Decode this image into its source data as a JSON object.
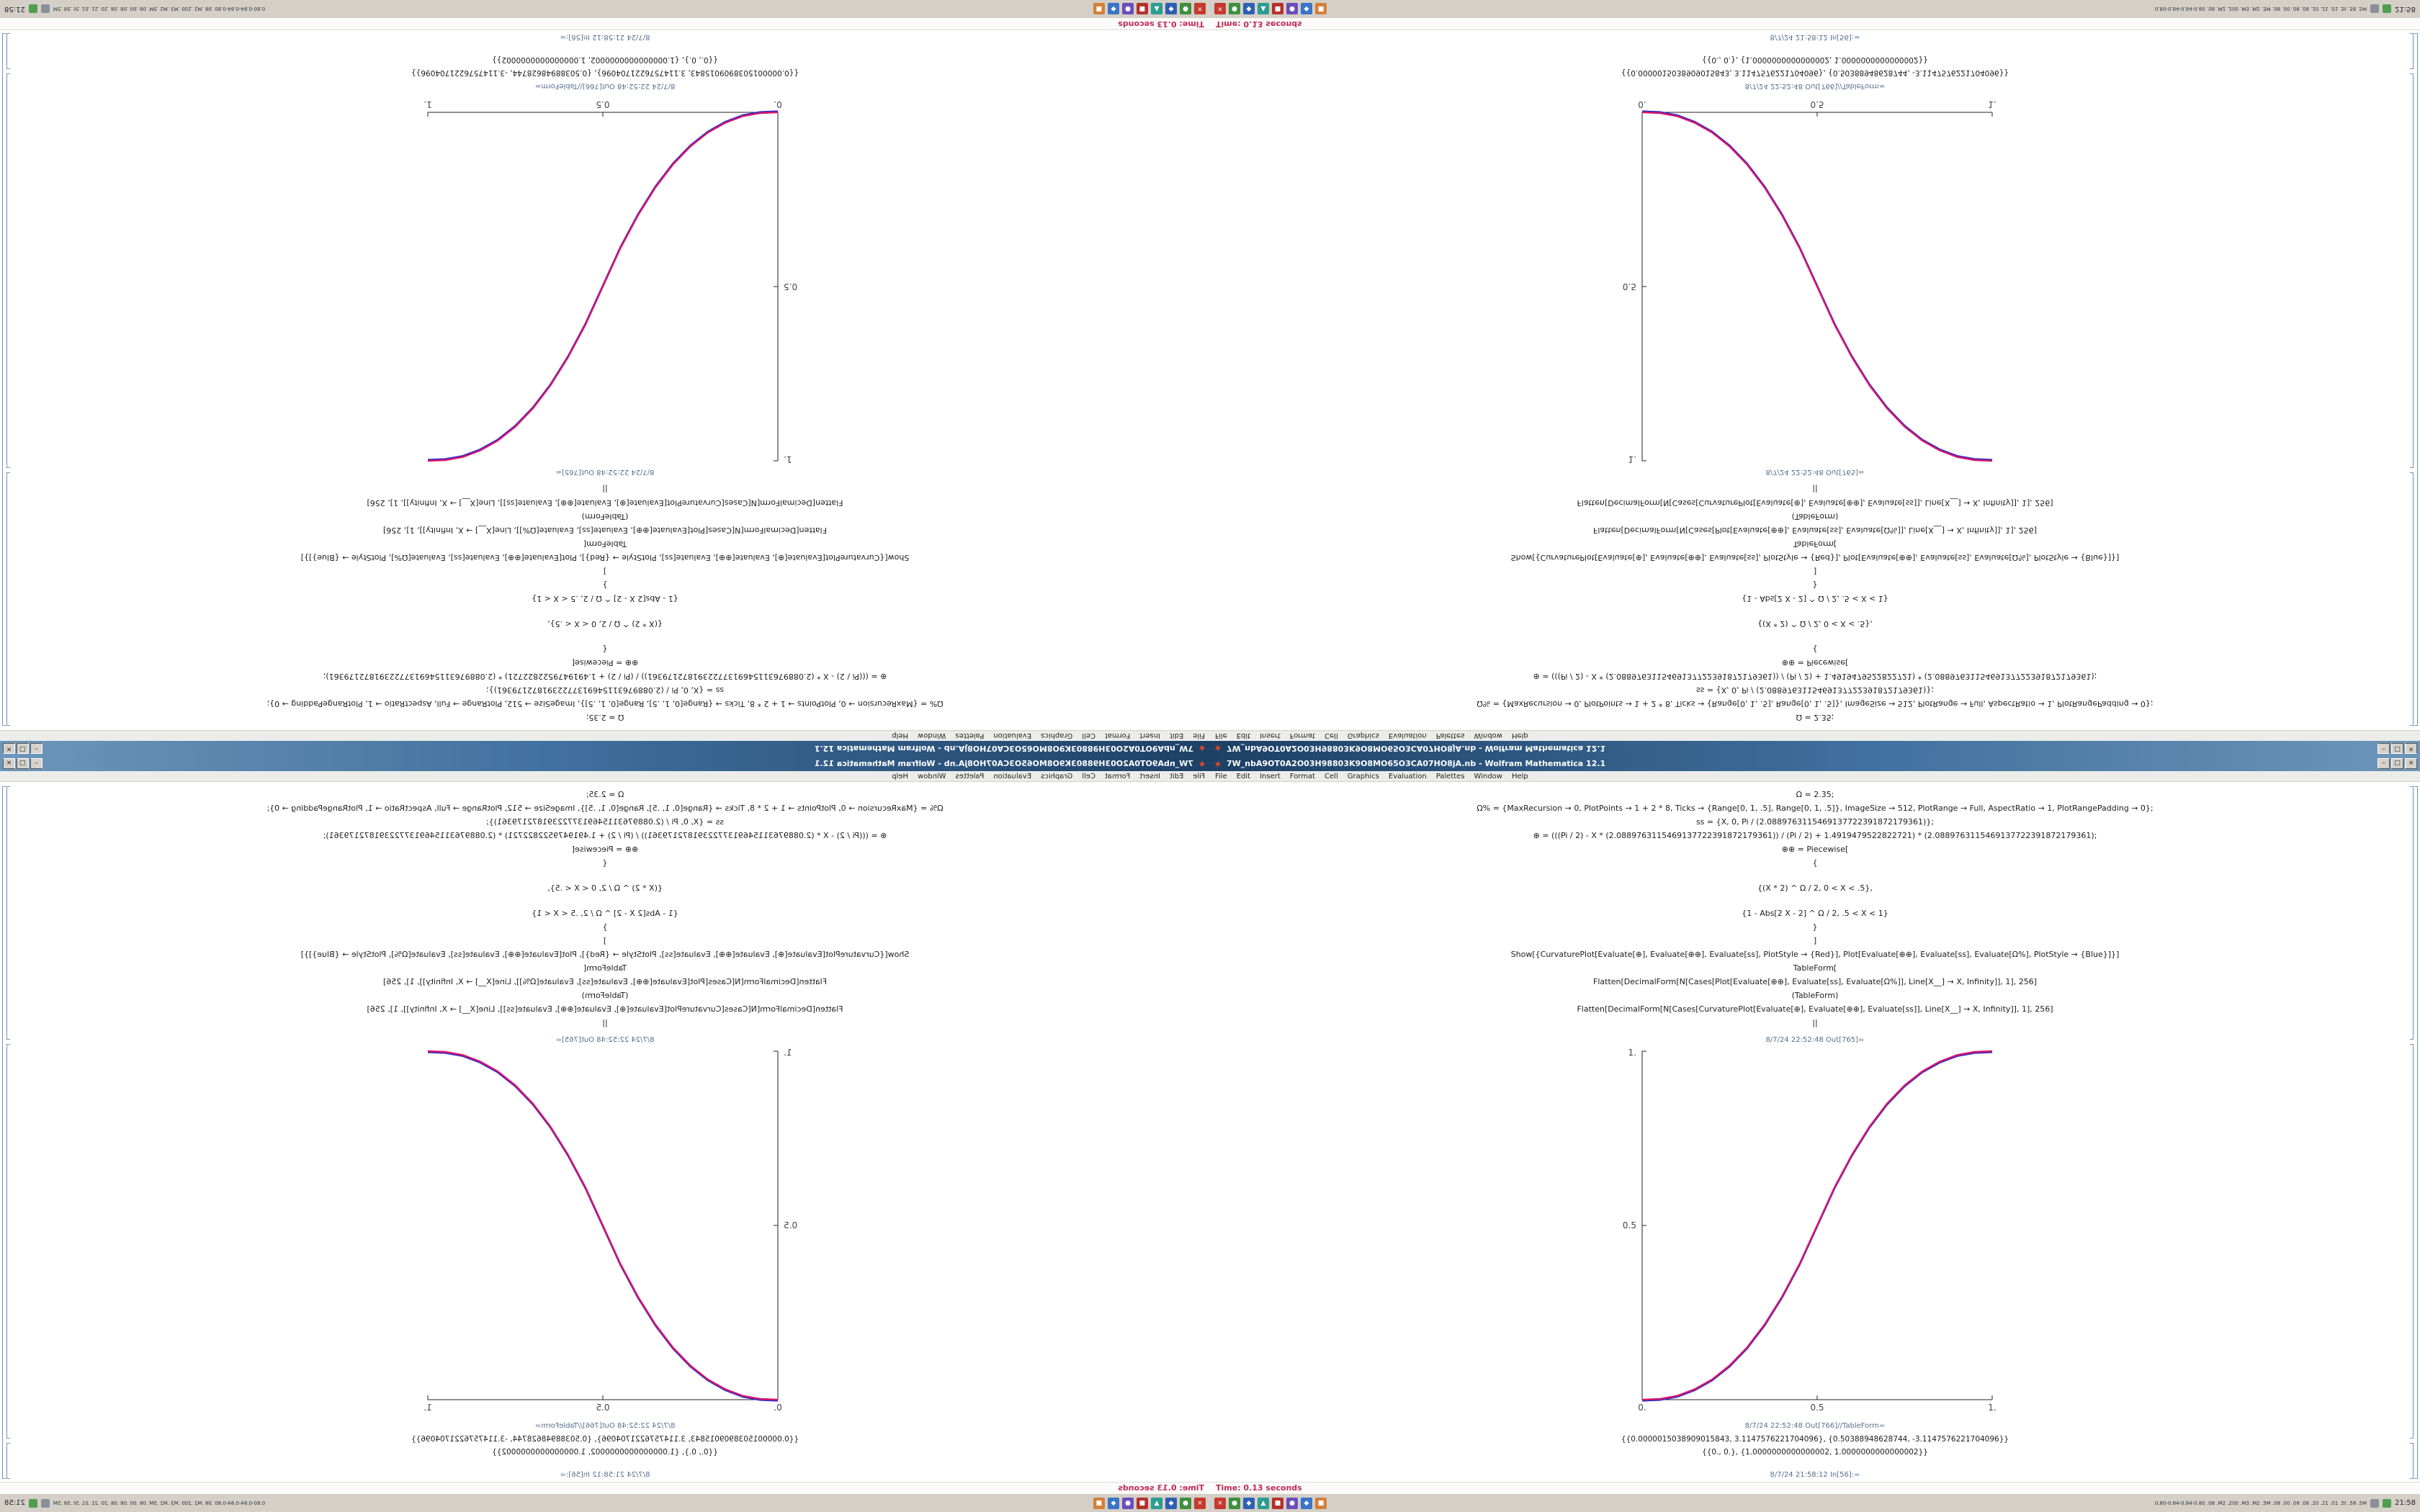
{
  "desktop": {
    "taskbar": {
      "quick_launch_icons": [
        {
          "name": "taskbar-app-red",
          "color": "#c43b2e",
          "glyph": "×"
        },
        {
          "name": "taskbar-app-green",
          "color": "#3e8f3e",
          "glyph": "●"
        },
        {
          "name": "taskbar-app-blue",
          "color": "#2f5fb5",
          "glyph": "◆"
        },
        {
          "name": "taskbar-app-teal",
          "color": "#2a9d8f",
          "glyph": "▲"
        },
        {
          "name": "taskbar-app-red-2",
          "color": "#b5312a",
          "glyph": "■"
        },
        {
          "name": "taskbar-app-purple",
          "color": "#6a4fb8",
          "glyph": "●"
        },
        {
          "name": "taskbar-app-blue-2",
          "color": "#3b74c9",
          "glyph": "◆"
        },
        {
          "name": "taskbar-app-orange",
          "color": "#d4803a",
          "glyph": "■"
        }
      ],
      "tray_text": "0.80-0.84-0.84-0.80 .08 .M2 .200 .M3 .M2 .5M .08 .00 .08 .08 .20 .21 .01 .5t .58 .5M",
      "clock": "21:58"
    },
    "status_strip": {
      "time_label": "Time: 0.13 seconds"
    }
  },
  "window": {
    "title": "7W_nbA9OT0A2O03H98803K9O8MO65O3CA07HO8jA.nb - Wolfram Mathematica 12.1",
    "buttons": {
      "minimize": "–",
      "maximize": "□",
      "close": "×"
    }
  },
  "menu": {
    "items": [
      "File",
      "Edit",
      "Insert",
      "Format",
      "Cell",
      "Graphics",
      "Evaluation",
      "Palettes",
      "Window",
      "Help"
    ]
  },
  "notebook": {
    "code_lines": [
      "Ω = 2.35;",
      "Ω% = {MaxRecursion → 0, PlotPoints → 1 + 2 * 8, Ticks → {Range[0, 1, .5], Range[0, 1, .5]}, ImageSize → 512, PlotRange → Full, AspectRatio → 1, PlotRangePadding → 0};",
      "ss = {X, 0, Pi / (2.0889763115469137722391872179361)};",
      "⊕ = (((Pi / 2) - X * (2.0889763115469137722391872179361)) / (Pi / 2) + 1.4919479522822721) * (2.0889763115469137722391872179361);",
      "⊕⊕ = Piecewise[",
      "{",
      "{(X * 2) ^ Ω / 2, 0 < X < .5},",
      "{1 - Abs[2 X - 2] ^ Ω / 2, .5 < X < 1}",
      "}",
      "]",
      "Show[{CurvaturePlot[Evaluate[⊕], Evaluate[⊕⊕], Evaluate[ss], PlotStyle → {Red}], Plot[Evaluate[⊕⊕], Evaluate[ss], Evaluate[Ω%], PlotStyle → {Blue}]}]",
      "TableForm[",
      "Flatten[DecimalForm[N[Cases[Plot[Evaluate[⊕⊕], Evaluate[ss], Evaluate[Ω%]], Line[X__] → X, Infinity]], 1], 256]",
      "(TableForm)",
      "Flatten[DecimalForm[N[Cases[CurvaturePlot[Evaluate[⊕], Evaluate[⊕⊕], Evaluate[ss]], Line[X__] → X, Infinity]], 1], 256]",
      "||"
    ],
    "out_plot_label": "8/7/24 22:52:48 Out[765]=",
    "out_table_label": "8/7/24 22:52:48 Out[766]//TableForm=",
    "table_rows": [
      "{{0.0000015038909015843, 3.1147576221704096}, {0.50388948628744, -3.1147576221704096}}",
      "{{0., 0.}, {1.0000000000000002, 1.0000000000000002}}"
    ],
    "next_input_label": "8/7/24 21:58:12 In[56]:="
  },
  "chart_data": {
    "type": "line",
    "title": "",
    "xlabel": "",
    "ylabel": "",
    "xlim": [
      0,
      1
    ],
    "ylim": [
      0,
      1
    ],
    "xticks": [
      "0.",
      "0.5",
      "1."
    ],
    "yticks": [
      "0.",
      "0.5",
      "1."
    ],
    "grid": false,
    "legend": "none",
    "description": "Smoothstep sigmoid f(x) = (2x)^2.35/2 on [0,.5], 1-(2-2x)^2.35/2 on [.5,1]; red CurvaturePlot and blue Plot overlap giving a magenta curve; shown upright (bottom-right), mirrored horizontally (bottom-left), mirrored vertically (top-right) and rotated 180° (top-left).",
    "x": [
      0,
      0.05,
      0.1,
      0.15,
      0.2,
      0.25,
      0.3,
      0.35,
      0.4,
      0.45,
      0.5,
      0.55,
      0.6,
      0.65,
      0.7,
      0.75,
      0.8,
      0.85,
      0.9,
      0.95,
      1
    ],
    "series": [
      {
        "name": "CurvaturePlot (Red)",
        "color": "#d4156e",
        "values": [
          0,
          0.002,
          0.011,
          0.03,
          0.058,
          0.098,
          0.15,
          0.216,
          0.296,
          0.39,
          0.5,
          0.61,
          0.704,
          0.784,
          0.85,
          0.902,
          0.942,
          0.97,
          0.989,
          0.998,
          1
        ]
      },
      {
        "name": "Plot (Blue)",
        "color": "#2b2bcc",
        "values": [
          0,
          0.002,
          0.011,
          0.03,
          0.058,
          0.098,
          0.15,
          0.216,
          0.296,
          0.39,
          0.5,
          0.61,
          0.704,
          0.784,
          0.85,
          0.902,
          0.942,
          0.97,
          0.989,
          0.998,
          1
        ]
      }
    ]
  }
}
